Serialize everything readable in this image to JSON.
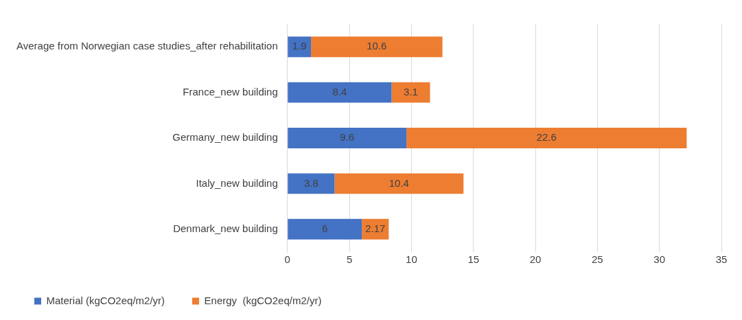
{
  "chart_data": {
    "type": "bar",
    "orientation": "horizontal",
    "stacked": true,
    "categories": [
      "Average from Norwegian case studies_after rehabilitation",
      "France_new building",
      "Germany_new building",
      "Italy_new building",
      "Denmark_new building"
    ],
    "series": [
      {
        "name": "Material (kgCO2eq/m2/yr)",
        "color": "#4472c4",
        "values": [
          1.9,
          8.4,
          9.6,
          3.8,
          6
        ]
      },
      {
        "name": "Energy  (kgCO2eq/m2/yr)",
        "color": "#ed7d31",
        "values": [
          10.6,
          3.1,
          22.6,
          10.4,
          2.17
        ]
      }
    ],
    "xlim": [
      0,
      35
    ],
    "xticks": [
      0,
      5,
      10,
      15,
      20,
      25,
      30,
      35
    ],
    "grid": "x",
    "legend": "bottom",
    "data_labels": true
  }
}
